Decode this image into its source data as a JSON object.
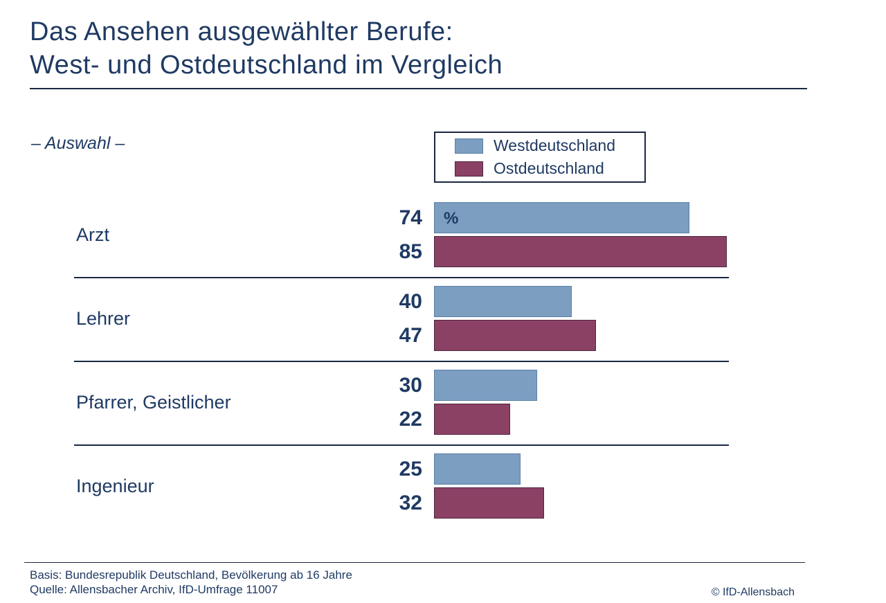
{
  "page": {
    "title_line1": "Das Ansehen ausgewählter Berufe:",
    "title_line2": "West- und Ostdeutschland im Vergleich",
    "subtitle": "– Auswahl –",
    "footer": {
      "basis": "Basis: Bundesrepublik Deutschland, Bevölkerung ab 16 Jahre",
      "quelle": "Quelle: Allensbacher Archiv, IfD-Umfrage 11007",
      "copyright": "© IfD-Allensbach"
    }
  },
  "chart_data": {
    "type": "bar",
    "orientation": "horizontal",
    "title": "Das Ansehen ausgewählter Berufe: West- und Ostdeutschland im Vergleich",
    "subtitle": "– Auswahl –",
    "unit_label": "%",
    "categories": [
      "Arzt",
      "Lehrer",
      "Pfarrer, Geistlicher",
      "Ingenieur"
    ],
    "series": [
      {
        "name": "Westdeutschland",
        "color": "#7C9EC1",
        "border_color": "#5b7fa6",
        "values": [
          74,
          40,
          30,
          25
        ]
      },
      {
        "name": "Ostdeutschland",
        "color": "#8B4164",
        "border_color": "#512440",
        "values": [
          85,
          47,
          22,
          32
        ]
      }
    ],
    "xlim": [
      0,
      100
    ],
    "grid": false,
    "legend_position": "top-right",
    "value_labels": "left-of-bars"
  },
  "colors": {
    "text_navy": "#1F3A63",
    "rule_dark": "#1a2742",
    "background": "#ffffff"
  }
}
